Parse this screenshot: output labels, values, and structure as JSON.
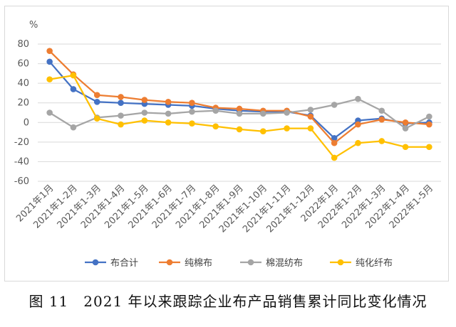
{
  "caption": "图 11　2021 年以来跟踪企业布产品销售累计同比变化情况",
  "chart_data": {
    "type": "line",
    "unit_label": "%",
    "categories": [
      "2021年1月",
      "2021年1-2月",
      "2021年1-3月",
      "2021年1-4月",
      "2021年1-5月",
      "2021年1-6月",
      "2021年1-7月",
      "2021年1-8月",
      "2021年1-9月",
      "2021年1-10月",
      "2021年1-11月",
      "2021年1-12月",
      "2022年1月",
      "2022年1-2月",
      "2022年1-3月",
      "2022年1-4月",
      "2022年1-5月"
    ],
    "ylim": [
      -60,
      80
    ],
    "yticks": [
      -60,
      -40,
      -20,
      0,
      20,
      40,
      60,
      80
    ],
    "grid": true,
    "legend_position": "bottom",
    "series": [
      {
        "name": "布合计",
        "color": "#4472C4",
        "values": [
          62,
          34,
          21,
          20,
          19,
          18,
          17,
          14,
          12,
          11,
          11,
          7,
          -16,
          2,
          4,
          -1,
          0
        ]
      },
      {
        "name": "纯棉布",
        "color": "#ED7D31",
        "values": [
          73,
          49,
          28,
          26,
          23,
          21,
          20,
          15,
          14,
          12,
          12,
          6,
          -21,
          -2,
          3,
          0,
          -2
        ]
      },
      {
        "name": "棉混纺布",
        "color": "#A5A5A5",
        "values": [
          10,
          -5,
          5,
          7,
          10,
          9,
          11,
          12,
          9,
          9,
          10,
          13,
          18,
          24,
          12,
          -6,
          6
        ]
      },
      {
        "name": "纯化纤布",
        "color": "#FFC000",
        "values": [
          44,
          48,
          4,
          -2,
          2,
          0,
          -1,
          -4,
          -7,
          -9,
          -6,
          -6,
          -36,
          -21,
          -19,
          -25,
          -25
        ]
      }
    ]
  }
}
